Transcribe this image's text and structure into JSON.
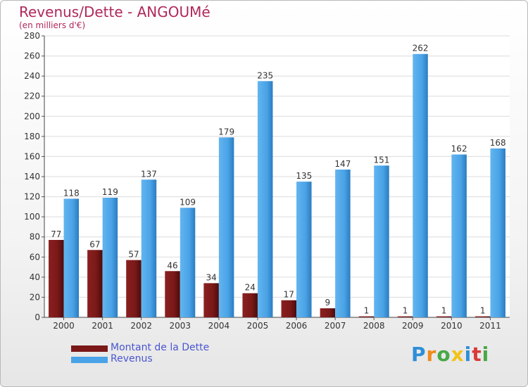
{
  "chart_data": {
    "type": "bar",
    "title": "Revenus/Dette - ANGOUMé",
    "subtitle": "(en milliers d'€)",
    "xlabel": "",
    "ylabel": "",
    "ylim": [
      0,
      280
    ],
    "yticks": [
      0,
      20,
      40,
      60,
      80,
      100,
      120,
      140,
      160,
      180,
      200,
      220,
      240,
      260,
      280
    ],
    "grid": true,
    "categories": [
      "2000",
      "2001",
      "2002",
      "2003",
      "2004",
      "2005",
      "2006",
      "2007",
      "2008",
      "2009",
      "2010",
      "2011"
    ],
    "series": [
      {
        "name": "Montant de la Dette",
        "color": "#7a1818",
        "values": [
          77,
          67,
          57,
          46,
          34,
          24,
          17,
          9,
          1,
          1,
          1,
          1
        ]
      },
      {
        "name": "Revenus",
        "color": "#4aa3e6",
        "values": [
          118,
          119,
          137,
          109,
          179,
          235,
          135,
          147,
          151,
          262,
          162,
          168
        ]
      }
    ],
    "legend_position": "bottom-left"
  },
  "legend": {
    "dette_label": "Montant de la Dette",
    "revenus_label": "Revenus",
    "dette_color": "#7a1818",
    "revenus_color": "#4aa3e6"
  },
  "logo": {
    "letters": [
      "P",
      "r",
      "o",
      "x",
      "i",
      "t",
      "i"
    ],
    "colors": [
      "#2f8fd8",
      "#f08a1c",
      "#47a847",
      "#f2c318",
      "#2f8fd8",
      "#d83a3a",
      "#47a847"
    ]
  }
}
